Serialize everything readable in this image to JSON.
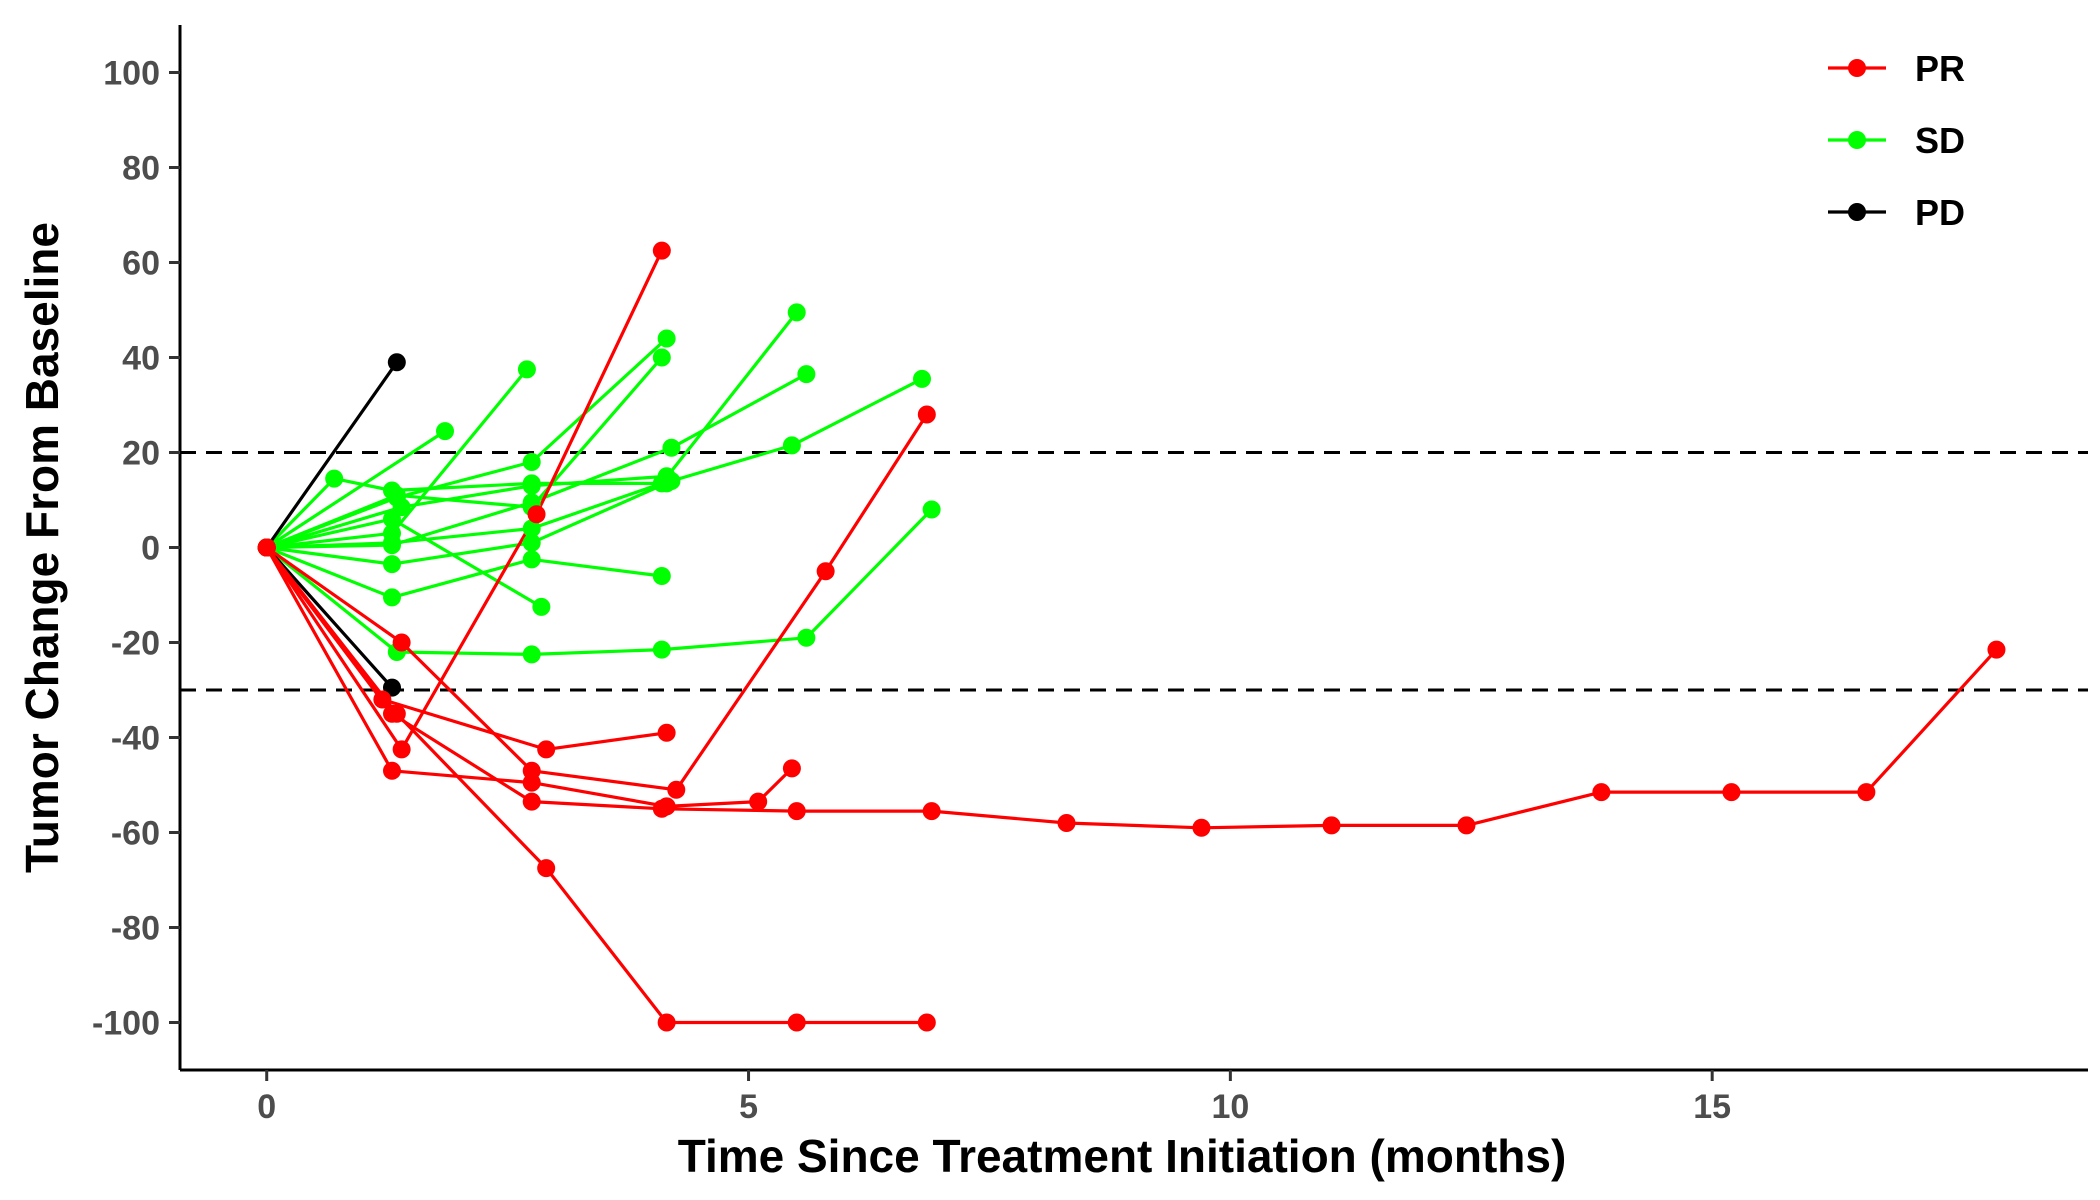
{
  "chart_data": {
    "type": "line",
    "title": "",
    "xlabel": "Time Since Treatment Initiation (months)",
    "ylabel": "Tumor Change From Baseline",
    "xlim": [
      -0.9,
      18.9
    ],
    "ylim": [
      -110,
      110
    ],
    "xticks": [
      0,
      5,
      10,
      15
    ],
    "yticks": [
      -100,
      -80,
      -60,
      -40,
      -20,
      0,
      20,
      40,
      60,
      80,
      100
    ],
    "reference_lines": [
      20,
      -30
    ],
    "grid": false,
    "legend_position": "top-right",
    "legend": [
      {
        "label": "PR",
        "color": "#ff0000"
      },
      {
        "label": "SD",
        "color": "#00ff00"
      },
      {
        "label": "PD",
        "color": "#000000"
      }
    ],
    "series": [
      {
        "name": "PR",
        "color": "#ff0000",
        "x": [
          0,
          1.3,
          2.75,
          4.1,
          5.5,
          6.9,
          8.3,
          9.7,
          11.05,
          12.45,
          13.85,
          15.2,
          16.6,
          17.95
        ],
        "y": [
          0,
          -35,
          -53.5,
          -55,
          -55.5,
          -55.5,
          -58,
          -59,
          -58.5,
          -58.5,
          -51.5,
          -51.5,
          -51.5,
          -21.5
        ]
      },
      {
        "name": "PR",
        "color": "#ff0000",
        "x": [
          0,
          1.35,
          2.9,
          4.15,
          5.5,
          6.85
        ],
        "y": [
          0,
          -35,
          -67.5,
          -100,
          -100,
          -100
        ]
      },
      {
        "name": "PR",
        "color": "#ff0000",
        "x": [
          0,
          1.4,
          2.75,
          4.25,
          5.8,
          6.85
        ],
        "y": [
          0,
          -20,
          -47,
          -51,
          -5,
          28
        ]
      },
      {
        "name": "PR",
        "color": "#ff0000",
        "x": [
          0,
          1.3,
          2.75,
          4.15,
          5.1,
          5.45
        ],
        "y": [
          0,
          -47,
          -49.5,
          -54.5,
          -53.5,
          -46.5
        ]
      },
      {
        "name": "PR",
        "color": "#ff0000",
        "x": [
          0,
          1.2,
          2.9,
          4.15
        ],
        "y": [
          0,
          -32,
          -42.5,
          -39
        ]
      },
      {
        "name": "PR",
        "color": "#ff0000",
        "x": [
          0,
          1.4,
          2.8,
          4.1
        ],
        "y": [
          0,
          -42.5,
          7,
          62.5
        ]
      },
      {
        "name": "SD",
        "color": "#00ff00",
        "x": [
          0,
          0.7,
          1.3,
          2.75,
          4.15
        ],
        "y": [
          0,
          14.5,
          12,
          13.5,
          13.5
        ]
      },
      {
        "name": "SD",
        "color": "#00ff00",
        "x": [
          0,
          1.35,
          2.75,
          4.1,
          5.6,
          6.9
        ],
        "y": [
          0,
          -22,
          -22.5,
          -21.5,
          -19,
          8
        ]
      },
      {
        "name": "SD",
        "color": "#00ff00",
        "x": [
          0,
          1.3,
          2.75,
          4.1
        ],
        "y": [
          0,
          -10.5,
          -2.5,
          -6
        ]
      },
      {
        "name": "SD",
        "color": "#00ff00",
        "x": [
          0,
          1.3,
          2.7
        ],
        "y": [
          0,
          3,
          37.5
        ]
      },
      {
        "name": "SD",
        "color": "#00ff00",
        "x": [
          0,
          1.35,
          2.75,
          4.15
        ],
        "y": [
          0,
          10.5,
          18,
          44
        ]
      },
      {
        "name": "SD",
        "color": "#00ff00",
        "x": [
          0,
          1.4,
          2.75,
          4.15
        ],
        "y": [
          0,
          8.5,
          13,
          15
        ]
      },
      {
        "name": "SD",
        "color": "#00ff00",
        "x": [
          0,
          1.3,
          2.75,
          4.1,
          5.5
        ],
        "y": [
          0,
          1,
          4,
          13.5,
          49.5
        ]
      },
      {
        "name": "SD",
        "color": "#00ff00",
        "x": [
          0,
          1.3,
          2.75,
          4.2,
          5.6
        ],
        "y": [
          0,
          0.5,
          9.5,
          21,
          36.5
        ]
      },
      {
        "name": "SD",
        "color": "#00ff00",
        "x": [
          0,
          1.35,
          2.75,
          4.1
        ],
        "y": [
          0,
          11,
          8.5,
          40
        ]
      },
      {
        "name": "SD",
        "color": "#00ff00",
        "x": [
          0,
          1.3,
          2.75,
          4.2,
          5.45,
          6.8
        ],
        "y": [
          0,
          -3.5,
          1,
          14,
          21.5,
          35.5
        ]
      },
      {
        "name": "SD",
        "color": "#00ff00",
        "x": [
          0,
          1.3,
          2.85
        ],
        "y": [
          0,
          6,
          -12.5
        ]
      },
      {
        "name": "SD",
        "color": "#00ff00",
        "x": [
          0,
          1.85
        ],
        "y": [
          0,
          24.5
        ]
      },
      {
        "name": "PD",
        "color": "#000000",
        "x": [
          0,
          1.35
        ],
        "y": [
          0,
          39
        ]
      },
      {
        "name": "PD",
        "color": "#000000",
        "x": [
          0,
          1.3
        ],
        "y": [
          0,
          -29.5
        ]
      }
    ]
  }
}
